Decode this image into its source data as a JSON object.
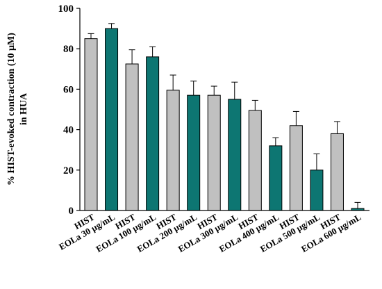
{
  "chart_data": {
    "type": "bar",
    "ylabel_line1": "% HIST-evoked contraction (10 µM)",
    "ylabel_line2": "in HUA",
    "xlabel": "",
    "ylim": [
      0,
      100
    ],
    "yticks": [
      0,
      20,
      40,
      60,
      80,
      100
    ],
    "grid": false,
    "legend": "none",
    "categories": [
      "HIST",
      "EOLa 30 µg/mL",
      "HIST",
      "EOLa 100 µg/mL",
      "HIST",
      "EOLa 200 µg/mL",
      "HIST",
      "EOLa 300 µg/mL",
      "HIST",
      "EOLa 400 µg/mL",
      "HIST",
      "EOLa 500 µg/mL",
      "HIST",
      "EOLa 600 µg/mL"
    ],
    "values": [
      85,
      90,
      72.5,
      76,
      59.5,
      57,
      57,
      55,
      49.5,
      32,
      42,
      20,
      38,
      1
    ],
    "errors": [
      2.5,
      2.5,
      7,
      5,
      7.5,
      7,
      4.5,
      8.5,
      5,
      4,
      7,
      8,
      6,
      3
    ],
    "colors": [
      "#c0c0c0",
      "#0d7672",
      "#c0c0c0",
      "#0d7672",
      "#c0c0c0",
      "#0d7672",
      "#c0c0c0",
      "#0d7672",
      "#c0c0c0",
      "#0d7672",
      "#c0c0c0",
      "#0d7672",
      "#c0c0c0",
      "#0d7672"
    ]
  }
}
